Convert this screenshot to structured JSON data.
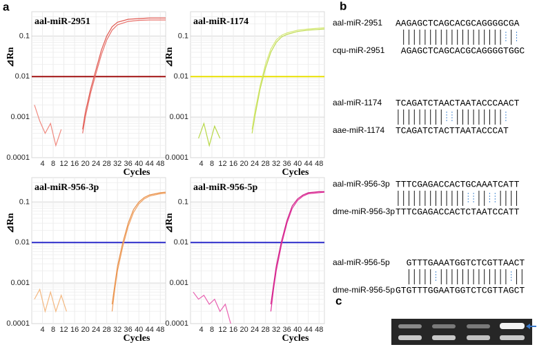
{
  "panel_labels": [
    "a",
    "b",
    "c"
  ],
  "alignments": [
    {
      "name1": "aal-miR-2951",
      "seq1": "AAGAGCTCAGCACGCAGGGGCGA",
      "name2": "cqu-miR-2951",
      "seq2": "AGAGCTCAGCACGCAGGGGTGGC"
    },
    {
      "name1": "aal-miR-1174",
      "seq1": "TCAGATCTAACTAATACCCAACT",
      "name2": "aae-miR-1174",
      "seq2": "TCAGATCTACTTAATACCCAT"
    },
    {
      "name1": "aal-miR-956-3p",
      "seq1": "TTTCGAGACCACTGCAAATCATT",
      "name2": "dme-miR-956-3p",
      "seq2": "TTTCGAGACCACTCTAATCCATT"
    },
    {
      "name1": "aal-miR-956-5p",
      "seq1": "GTTTGAAATGGTCTCGTTAACT",
      "name2": "dme-miR-956-5p",
      "seq2": "GTGTTTGGAATGGTCTCGTTAGCT"
    }
  ],
  "chart_data": [
    {
      "type": "line",
      "title": "aal-miR-2951",
      "ylabel": "⊿Rn",
      "xlabel": "Cycles",
      "log_y": true,
      "grid": true,
      "xlim": [
        0,
        50
      ],
      "ylim": [
        0.0001,
        0.4
      ],
      "xticks": [
        4,
        8,
        12,
        16,
        20,
        24,
        28,
        32,
        36,
        40,
        44,
        48
      ],
      "yticks": [
        0.0001,
        0.001,
        0.01,
        0.1
      ],
      "threshold": {
        "value": 0.01,
        "color": "#a01010"
      },
      "series": [
        {
          "color": "#e8706a",
          "x": [
            19,
            20,
            22,
            24,
            26,
            28,
            30,
            32,
            36,
            40,
            44,
            50
          ],
          "values": [
            0.0004,
            0.001,
            0.004,
            0.012,
            0.035,
            0.08,
            0.14,
            0.19,
            0.23,
            0.245,
            0.25,
            0.25
          ]
        },
        {
          "color": "#e05850",
          "x": [
            19,
            20,
            22,
            24,
            26,
            28,
            30,
            32,
            36,
            40,
            44,
            50
          ],
          "values": [
            0.0005,
            0.0013,
            0.005,
            0.015,
            0.045,
            0.1,
            0.17,
            0.22,
            0.26,
            0.27,
            0.28,
            0.28
          ]
        },
        {
          "color": "#f08a80",
          "x": [
            1,
            3,
            5,
            7,
            9,
            11
          ],
          "values": [
            0.002,
            0.0008,
            0.0004,
            0.0007,
            0.0002,
            0.0005
          ]
        }
      ]
    },
    {
      "type": "line",
      "title": "aal-miR-1174",
      "ylabel": "⊿Rn",
      "xlabel": "Cycles",
      "log_y": true,
      "grid": true,
      "xlim": [
        0,
        50
      ],
      "ylim": [
        0.0001,
        0.4
      ],
      "xticks": [
        4,
        8,
        12,
        16,
        20,
        24,
        28,
        32,
        36,
        40,
        44,
        48
      ],
      "yticks": [
        0.0001,
        0.001,
        0.01,
        0.1
      ],
      "threshold": {
        "value": 0.01,
        "color": "#e8e000"
      },
      "series": [
        {
          "color": "#c0dc50",
          "x": [
            23,
            24,
            26,
            28,
            30,
            32,
            34,
            36,
            40,
            44,
            50
          ],
          "values": [
            0.0004,
            0.001,
            0.005,
            0.016,
            0.04,
            0.07,
            0.095,
            0.11,
            0.13,
            0.14,
            0.15
          ]
        },
        {
          "color": "#d4e870",
          "x": [
            23,
            24,
            26,
            28,
            30,
            32,
            34,
            36,
            40,
            44,
            50
          ],
          "values": [
            0.0005,
            0.0013,
            0.006,
            0.02,
            0.048,
            0.08,
            0.105,
            0.12,
            0.14,
            0.15,
            0.16
          ]
        },
        {
          "color": "#b8d848",
          "x": [
            3,
            5,
            7,
            9,
            11
          ],
          "values": [
            0.0003,
            0.0007,
            0.0002,
            0.0006,
            0.0003
          ]
        }
      ]
    },
    {
      "type": "line",
      "title": "aal-miR-956-3p",
      "ylabel": "⊿Rn",
      "xlabel": "Cycles",
      "log_y": true,
      "grid": true,
      "xlim": [
        0,
        50
      ],
      "ylim": [
        0.0001,
        0.4
      ],
      "xticks": [
        4,
        8,
        12,
        16,
        20,
        24,
        28,
        32,
        36,
        40,
        44,
        48
      ],
      "yticks": [
        0.0001,
        0.001,
        0.01,
        0.1
      ],
      "threshold": {
        "value": 0.01,
        "color": "#2828c8"
      },
      "series": [
        {
          "color": "#f0a060",
          "x": [
            30,
            31,
            32,
            34,
            36,
            38,
            40,
            42,
            44,
            48,
            50
          ],
          "values": [
            0.0002,
            0.0007,
            0.002,
            0.008,
            0.025,
            0.055,
            0.09,
            0.12,
            0.14,
            0.16,
            0.165
          ]
        },
        {
          "color": "#e89048",
          "x": [
            30,
            31,
            32,
            34,
            36,
            38,
            40,
            42,
            44,
            48,
            50
          ],
          "values": [
            0.0003,
            0.0009,
            0.0026,
            0.01,
            0.03,
            0.065,
            0.1,
            0.13,
            0.15,
            0.17,
            0.175
          ]
        },
        {
          "color": "#f4b880",
          "x": [
            1,
            3,
            5,
            7,
            9,
            11,
            13
          ],
          "values": [
            0.0004,
            0.0007,
            0.0002,
            0.0006,
            0.0002,
            0.0005,
            0.0002
          ]
        }
      ]
    },
    {
      "type": "line",
      "title": "aal-miR-956-5p",
      "ylabel": "⊿Rn",
      "xlabel": "Cycles",
      "log_y": true,
      "grid": true,
      "xlim": [
        0,
        50
      ],
      "ylim": [
        0.0001,
        0.4
      ],
      "xticks": [
        4,
        8,
        12,
        16,
        20,
        24,
        28,
        32,
        36,
        40,
        44,
        48
      ],
      "yticks": [
        0.0001,
        0.001,
        0.01,
        0.1
      ],
      "threshold": {
        "value": 0.01,
        "color": "#2828c8"
      },
      "series": [
        {
          "color": "#e0309a",
          "x": [
            30,
            31,
            32,
            34,
            36,
            38,
            40,
            42,
            44,
            48,
            50
          ],
          "values": [
            0.0002,
            0.0007,
            0.002,
            0.009,
            0.03,
            0.07,
            0.11,
            0.14,
            0.16,
            0.17,
            0.175
          ]
        },
        {
          "color": "#d02088",
          "x": [
            30,
            31,
            32,
            34,
            36,
            38,
            40,
            42,
            44,
            48,
            50
          ],
          "values": [
            0.0003,
            0.0009,
            0.0026,
            0.011,
            0.035,
            0.08,
            0.12,
            0.15,
            0.17,
            0.18,
            0.18
          ]
        },
        {
          "color": "#e860b0",
          "x": [
            1,
            3,
            5,
            7,
            9,
            11,
            13,
            15
          ],
          "values": [
            0.0006,
            0.0004,
            0.0005,
            0.0003,
            0.0004,
            0.0002,
            0.0003,
            0.0001
          ]
        }
      ]
    }
  ]
}
